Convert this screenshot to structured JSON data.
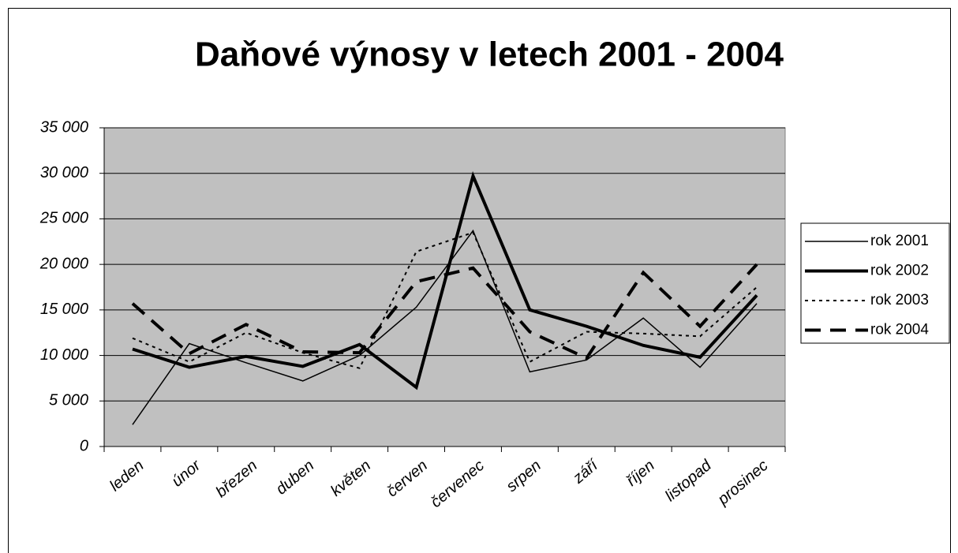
{
  "chart_data": {
    "type": "line",
    "title": "Daňové výnosy v letech 2001 - 2004",
    "categories": [
      "leden",
      "únor",
      "březen",
      "duben",
      "květen",
      "červen",
      "červenec",
      "srpen",
      "září",
      "říjen",
      "listopad",
      "prosinec"
    ],
    "series": [
      {
        "name": "rok 2001",
        "color": "#000000",
        "line_style": "thin",
        "values": [
          2400,
          11300,
          9200,
          7200,
          10000,
          15300,
          23700,
          8200,
          9500,
          14100,
          8700,
          15700
        ]
      },
      {
        "name": "rok 2002",
        "color": "#000000",
        "line_style": "thick",
        "values": [
          10700,
          8700,
          9900,
          8800,
          11200,
          6500,
          29700,
          15000,
          13200,
          11100,
          9800,
          16600
        ]
      },
      {
        "name": "rok 2003",
        "color": "#000000",
        "line_style": "dotted",
        "values": [
          11900,
          9300,
          12500,
          10300,
          8600,
          21400,
          23500,
          9300,
          12600,
          12400,
          12100,
          17500
        ]
      },
      {
        "name": "rok 2004",
        "color": "#000000",
        "line_style": "dashed",
        "values": [
          15700,
          10200,
          13400,
          10400,
          10300,
          18100,
          19600,
          12600,
          9700,
          19100,
          13200,
          20000
        ]
      }
    ],
    "ylim": [
      0,
      35000
    ],
    "yticks": [
      0,
      {
        "value": 5000,
        "label": "5 000"
      },
      {
        "value": 10000,
        "label": "10 000"
      },
      {
        "value": 15000,
        "label": "15 000"
      },
      {
        "value": 20000,
        "label": "20 000"
      },
      {
        "value": 25000,
        "label": "25 000"
      },
      {
        "value": 30000,
        "label": "30 000"
      },
      {
        "value": 35000,
        "label": "35 000"
      }
    ],
    "grid": true,
    "legend": "right",
    "plot_background": "#c0c0c0"
  }
}
